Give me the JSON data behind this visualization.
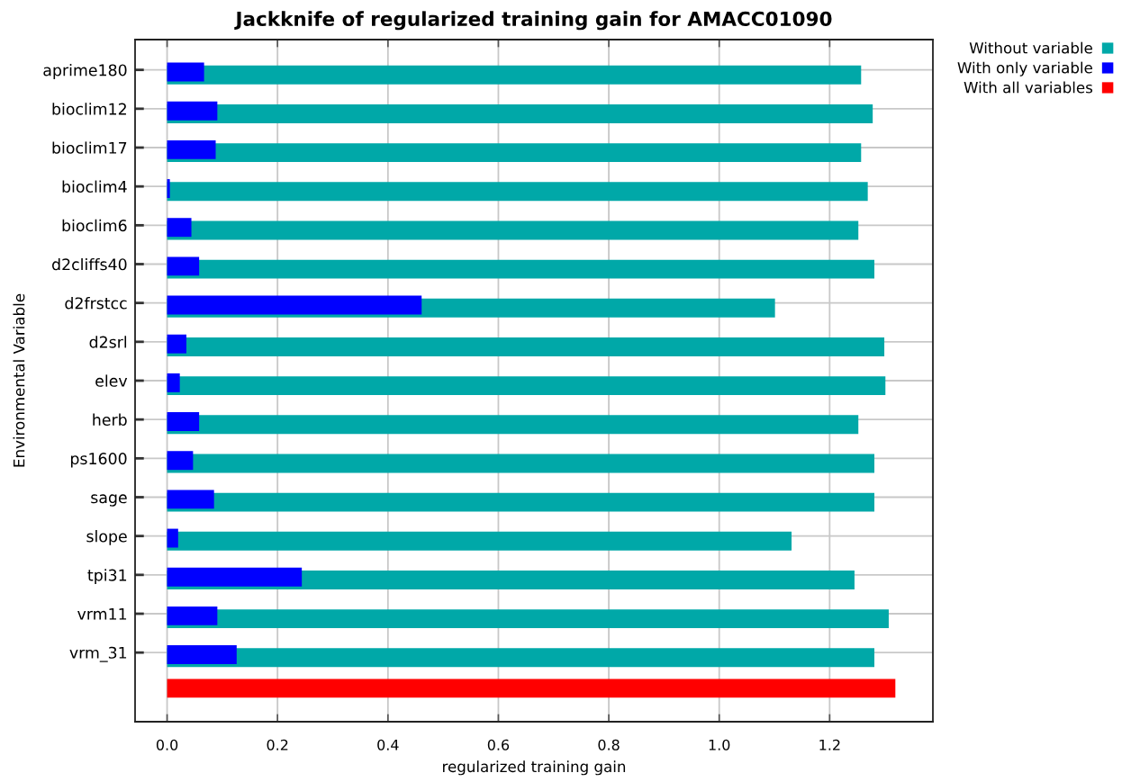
{
  "chart_data": {
    "type": "bar",
    "orientation": "horizontal",
    "title": "Jackknife of regularized training gain for AMACC01090",
    "xlabel": "regularized training gain",
    "ylabel": "Environmental Variable",
    "categories": [
      "aprime180",
      "bioclim12",
      "bioclim17",
      "bioclim4",
      "bioclim6",
      "d2cliffs40",
      "d2frstcc",
      "d2srl",
      "elev",
      "herb",
      "ps1600",
      "sage",
      "slope",
      "tpi31",
      "vrm11",
      "vrm_31",
      null
    ],
    "series": [
      {
        "name": "Without variable",
        "color": "#00a8a8",
        "values": [
          1.257,
          1.278,
          1.257,
          1.269,
          1.252,
          1.281,
          1.101,
          1.299,
          1.301,
          1.252,
          1.281,
          1.281,
          1.131,
          1.245,
          1.307,
          1.281,
          null
        ]
      },
      {
        "name": "With only variable",
        "color": "#0000ff",
        "values": [
          0.067,
          0.091,
          0.088,
          0.005,
          0.044,
          0.058,
          0.461,
          0.035,
          0.023,
          0.058,
          0.047,
          0.085,
          0.02,
          0.244,
          0.091,
          0.126,
          null
        ]
      },
      {
        "name": "With all variables",
        "color": "#ff0000",
        "values": [
          null,
          null,
          null,
          null,
          null,
          null,
          null,
          null,
          null,
          null,
          null,
          null,
          null,
          null,
          null,
          null,
          1.319
        ]
      }
    ],
    "xlim": [
      -0.058,
      1.387
    ],
    "xticks": [
      {
        "value": 0,
        "label": "0.0"
      },
      0.2,
      0.4,
      0.6,
      0.8,
      {
        "value": 1,
        "label": "1.0"
      },
      1.2
    ],
    "grid": true,
    "legend": "top right"
  }
}
